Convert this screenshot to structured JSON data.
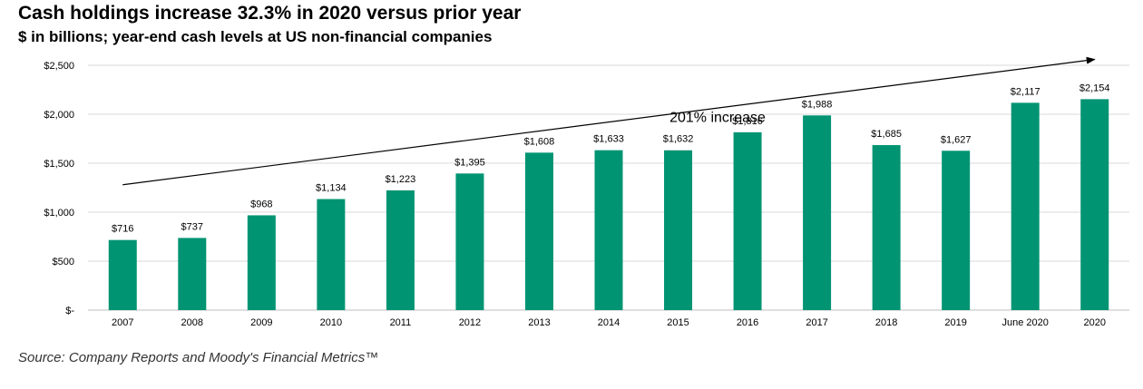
{
  "header": {
    "title": "Cash holdings increase 32.3% in 2020 versus prior year",
    "subtitle": "$ in billions; year-end cash levels at US non-financial companies"
  },
  "footer": {
    "source": "Source: Company Reports and Moody's Financial Metrics™"
  },
  "chart_data": {
    "type": "bar",
    "title": "Cash holdings increase 32.3% in 2020 versus prior year",
    "subtitle": "$ in billions; year-end cash levels at US non-financial companies",
    "categories": [
      "2007",
      "2008",
      "2009",
      "2010",
      "2011",
      "2012",
      "2013",
      "2014",
      "2015",
      "2016",
      "2017",
      "2018",
      "2019",
      "June 2020",
      "2020"
    ],
    "values": [
      716,
      737,
      968,
      1134,
      1223,
      1395,
      1608,
      1633,
      1632,
      1816,
      1988,
      1685,
      1627,
      2117,
      2154
    ],
    "data_labels": [
      "$716",
      "$737",
      "$968",
      "$1,134",
      "$1,223",
      "$1,395",
      "$1,608",
      "$1,633",
      "$1,632",
      "$1,816",
      "$1,988",
      "$1,685",
      "$1,627",
      "$2,117",
      "$2,154"
    ],
    "xlabel": "",
    "ylabel": "",
    "ylim": [
      0,
      2500
    ],
    "yticks": [
      0,
      500,
      1000,
      1500,
      2000,
      2500
    ],
    "ytick_labels": [
      "$-",
      "$500",
      "$1,000",
      "$1,500",
      "$2,000",
      "$2,500"
    ],
    "grid": true,
    "bar_color": "#009473",
    "grid_color": "#d9d9d9",
    "annotations": [
      {
        "type": "arrow",
        "text": "201% increase",
        "from_category": "2007",
        "from_value": 1280,
        "to_category": "2020",
        "to_value": 2560
      }
    ]
  }
}
